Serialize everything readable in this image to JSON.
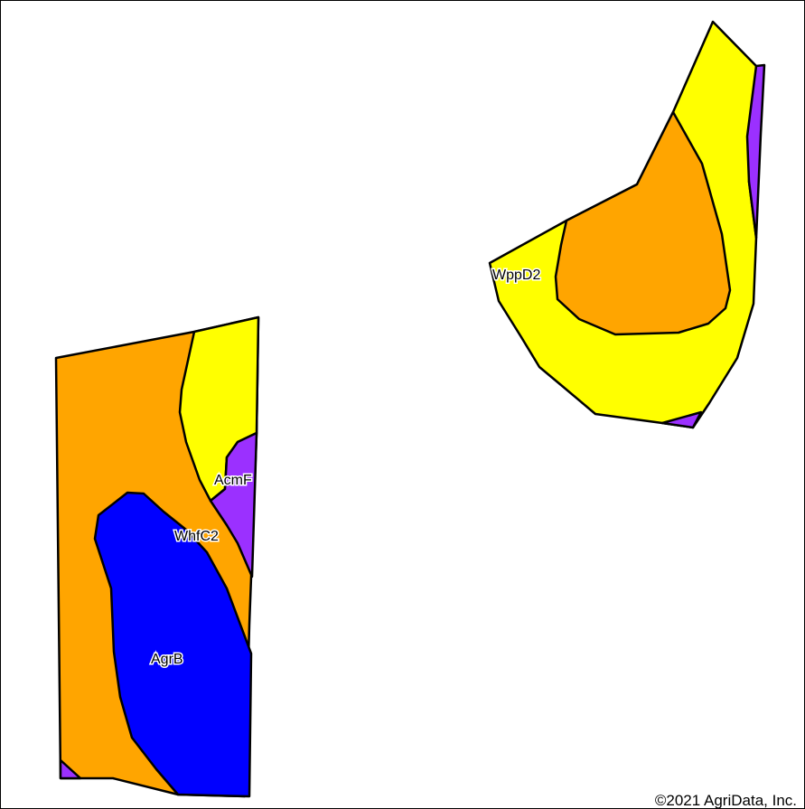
{
  "map": {
    "copyright": "©2021 AgriData, Inc.",
    "soil_units": [
      {
        "symbol": "WppD2",
        "color": "#ffff00"
      },
      {
        "symbol": "AcmF",
        "color": "#9b30ff"
      },
      {
        "symbol": "WhfC2",
        "color": "#ffa500"
      },
      {
        "symbol": "AgrB",
        "color": "#0000ff"
      }
    ],
    "colors": {
      "yellow": "#ffff00",
      "orange": "#ffa500",
      "purple": "#9b30ff",
      "blue": "#0000ff",
      "outline": "#000000"
    }
  }
}
